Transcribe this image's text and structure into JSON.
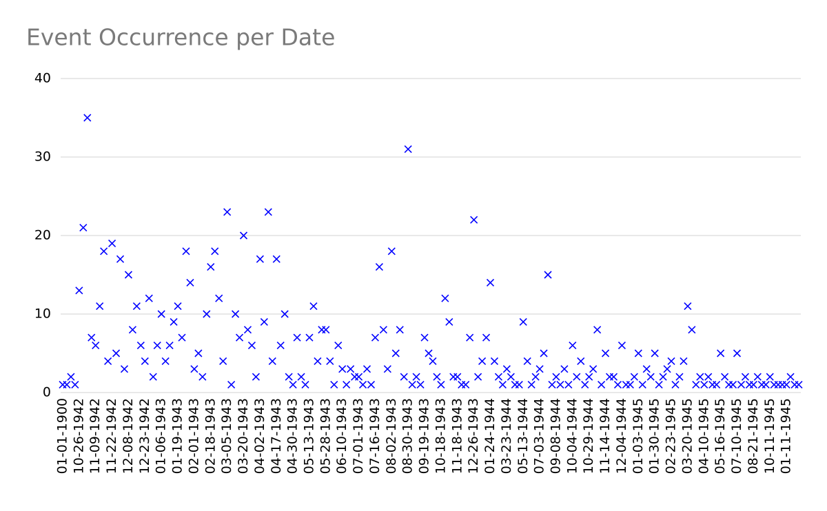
{
  "chart_data": {
    "type": "scatter",
    "title": "Event Occurrence per Date",
    "categories": [
      "01-01-1900",
      null,
      null,
      null,
      "10-26-1942",
      null,
      null,
      null,
      "11-09-1942",
      null,
      null,
      null,
      "11-22-1942",
      null,
      null,
      null,
      "12-08-1942",
      null,
      null,
      null,
      "12-23-1942",
      null,
      null,
      null,
      "01-06-1943",
      null,
      null,
      null,
      "01-19-1943",
      null,
      null,
      null,
      "02-01-1943",
      null,
      null,
      null,
      "02-18-1943",
      null,
      null,
      null,
      "03-05-1943",
      null,
      null,
      null,
      "03-20-1943",
      null,
      null,
      null,
      "04-02-1943",
      null,
      null,
      null,
      "04-17-1943",
      null,
      null,
      null,
      "04-30-1943",
      null,
      null,
      null,
      "05-13-1943",
      null,
      null,
      null,
      "05-28-1943",
      null,
      null,
      null,
      "06-10-1943",
      null,
      null,
      null,
      "07-01-1943",
      null,
      null,
      null,
      "07-16-1943",
      null,
      null,
      null,
      "08-02-1943",
      null,
      null,
      null,
      "08-30-1943",
      null,
      null,
      null,
      "09-19-1943",
      null,
      null,
      null,
      "10-18-1943",
      null,
      null,
      null,
      "11-18-1943",
      null,
      null,
      null,
      "12-26-1943",
      null,
      null,
      null,
      "01-24-1944",
      null,
      null,
      null,
      "03-23-1944",
      null,
      null,
      null,
      "05-13-1944",
      null,
      null,
      null,
      "07-03-1944",
      null,
      null,
      null,
      "09-08-1944",
      null,
      null,
      null,
      "10-04-1944",
      null,
      null,
      null,
      "10-29-1944",
      null,
      null,
      null,
      "11-14-1944",
      null,
      null,
      null,
      "12-04-1944",
      null,
      null,
      null,
      "01-03-1945",
      null,
      null,
      null,
      "01-30-1945",
      null,
      null,
      null,
      "02-23-1945",
      null,
      null,
      null,
      "03-20-1945",
      null,
      null,
      null,
      "04-10-1945",
      null,
      null,
      null,
      "05-16-1945",
      null,
      null,
      null,
      "07-10-1945",
      null,
      null,
      null,
      "08-21-1945",
      null,
      null,
      null,
      "10-11-1945",
      null,
      null,
      null,
      "01-11-1945",
      null,
      null,
      null
    ],
    "values": [
      1,
      1,
      2,
      1,
      13,
      21,
      35,
      7,
      6,
      11,
      18,
      4,
      19,
      5,
      17,
      3,
      15,
      8,
      11,
      6,
      4,
      12,
      2,
      6,
      10,
      4,
      6,
      9,
      11,
      7,
      18,
      14,
      3,
      5,
      2,
      10,
      16,
      18,
      12,
      4,
      23,
      1,
      10,
      7,
      20,
      8,
      6,
      2,
      17,
      9,
      23,
      4,
      17,
      6,
      10,
      2,
      1,
      7,
      2,
      1,
      7,
      11,
      4,
      8,
      8,
      4,
      1,
      6,
      3,
      1,
      3,
      2,
      2,
      1,
      3,
      1,
      7,
      16,
      8,
      3,
      18,
      5,
      8,
      2,
      31,
      1,
      2,
      1,
      7,
      5,
      4,
      2,
      1,
      12,
      9,
      2,
      2,
      1,
      1,
      7,
      22,
      2,
      4,
      7,
      14,
      4,
      2,
      1,
      3,
      2,
      1,
      1,
      9,
      4,
      1,
      2,
      3,
      5,
      15,
      1,
      2,
      1,
      3,
      1,
      6,
      2,
      4,
      1,
      2,
      3,
      8,
      1,
      5,
      2,
      2,
      1,
      6,
      1,
      1,
      2,
      5,
      1,
      3,
      2,
      5,
      1,
      2,
      3,
      4,
      1,
      2,
      4,
      11,
      8,
      1,
      2,
      1,
      2,
      1,
      1,
      5,
      2,
      1,
      1,
      5,
      1,
      2,
      1,
      1,
      2,
      1,
      1,
      2,
      1,
      1,
      1,
      1,
      2,
      1,
      1
    ],
    "color": "#0000ff",
    "ylim": [
      0,
      40
    ],
    "yticks": [
      0,
      10,
      20,
      30,
      40
    ],
    "grid": true
  }
}
